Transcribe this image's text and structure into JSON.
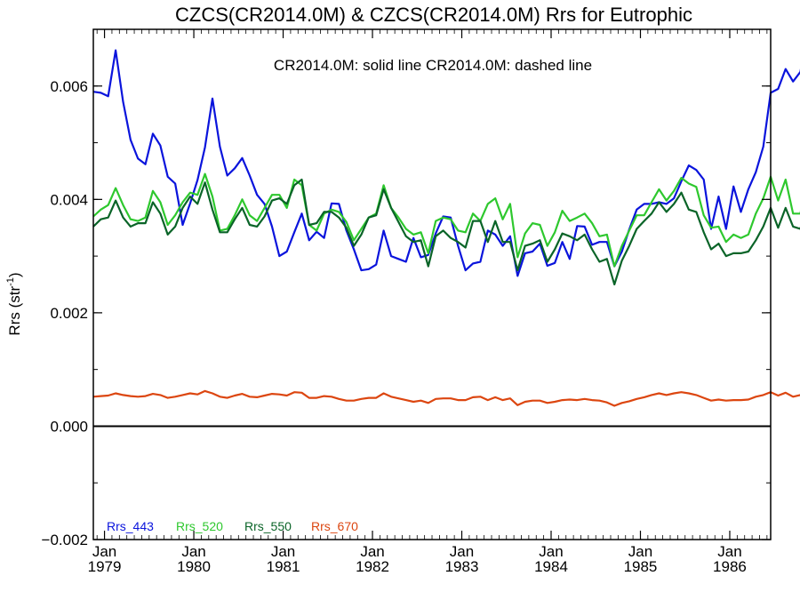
{
  "chart_data": {
    "type": "line",
    "title": "CZCS(CR2014.0M) & CZCS(CR2014.0M)  Rrs for Eutrophic",
    "subtitle": "CR2014.0M: solid line   CR2014.0M: dashed line",
    "ylabel_main": "Rrs (str",
    "ylabel_sup": "-1",
    "ylabel_tail": ")",
    "ylim": [
      -0.002,
      0.007
    ],
    "xlim": [
      1978.875,
      1986.458
    ],
    "yticks": [
      {
        "value": -0.002,
        "label": "−0.002"
      },
      {
        "value": 0.0,
        "label": "0.000"
      },
      {
        "value": 0.002,
        "label": "0.002"
      },
      {
        "value": 0.004,
        "label": "0.004"
      },
      {
        "value": 0.006,
        "label": "0.006"
      }
    ],
    "xticks": [
      {
        "value": 1979.0,
        "month": "Jan",
        "year": "1979"
      },
      {
        "value": 1980.0,
        "month": "Jan",
        "year": "1980"
      },
      {
        "value": 1981.0,
        "month": "Jan",
        "year": "1981"
      },
      {
        "value": 1982.0,
        "month": "Jan",
        "year": "1982"
      },
      {
        "value": 1983.0,
        "month": "Jan",
        "year": "1983"
      },
      {
        "value": 1984.0,
        "month": "Jan",
        "year": "1984"
      },
      {
        "value": 1985.0,
        "month": "Jan",
        "year": "1985"
      },
      {
        "value": 1986.0,
        "month": "Jan",
        "year": "1986"
      }
    ],
    "zero_line": 0.0,
    "x_start": 1978.875,
    "x_step_months": 1,
    "series": [
      {
        "name": "Rrs_443",
        "color": "#0a14dc",
        "values": [
          0.0059,
          0.00588,
          0.00582,
          0.00663,
          0.00572,
          0.00505,
          0.00472,
          0.00462,
          0.00516,
          0.00495,
          0.0044,
          0.00428,
          0.00355,
          0.00393,
          0.00434,
          0.00492,
          0.00578,
          0.00493,
          0.00442,
          0.00455,
          0.00473,
          0.00442,
          0.00408,
          0.00392,
          0.00352,
          0.003,
          0.00308,
          0.00342,
          0.00375,
          0.00328,
          0.00343,
          0.00332,
          0.00393,
          0.00392,
          0.00345,
          0.00312,
          0.00275,
          0.00277,
          0.00285,
          0.00345,
          0.003,
          0.00295,
          0.0029,
          0.00332,
          0.00298,
          0.00302,
          0.0034,
          0.0037,
          0.00368,
          0.00318,
          0.00275,
          0.00287,
          0.0029,
          0.00345,
          0.00338,
          0.00318,
          0.00335,
          0.00265,
          0.00305,
          0.00308,
          0.00322,
          0.00283,
          0.00288,
          0.00325,
          0.00295,
          0.00353,
          0.00352,
          0.0032,
          0.00325,
          0.00325,
          0.00282,
          0.00308,
          0.00347,
          0.00382,
          0.00392,
          0.00392,
          0.00395,
          0.00392,
          0.00402,
          0.00432,
          0.0046,
          0.00452,
          0.00435,
          0.00348,
          0.00405,
          0.00348,
          0.00423,
          0.00378,
          0.00418,
          0.00448,
          0.00493,
          0.00588,
          0.00595,
          0.0063,
          0.00608,
          0.00625,
          0.00705
        ]
      },
      {
        "name": "Rrs_520",
        "color": "#2ec82e",
        "values": [
          0.0037,
          0.00382,
          0.0039,
          0.0042,
          0.0039,
          0.00365,
          0.00362,
          0.00368,
          0.00415,
          0.00395,
          0.00355,
          0.00372,
          0.00395,
          0.00412,
          0.00408,
          0.00445,
          0.00405,
          0.00345,
          0.00348,
          0.00372,
          0.004,
          0.00372,
          0.00362,
          0.00385,
          0.00408,
          0.00408,
          0.00385,
          0.00435,
          0.00425,
          0.00355,
          0.00345,
          0.00375,
          0.00382,
          0.00378,
          0.0036,
          0.00328,
          0.00348,
          0.00368,
          0.00375,
          0.00425,
          0.00385,
          0.00368,
          0.00348,
          0.00338,
          0.00342,
          0.00305,
          0.00362,
          0.00368,
          0.00365,
          0.00345,
          0.00342,
          0.00375,
          0.00362,
          0.00392,
          0.00402,
          0.00365,
          0.00392,
          0.00298,
          0.0034,
          0.00358,
          0.00355,
          0.00318,
          0.00342,
          0.0038,
          0.00362,
          0.00368,
          0.00375,
          0.00358,
          0.00335,
          0.00338,
          0.00282,
          0.00318,
          0.00345,
          0.00372,
          0.00372,
          0.00395,
          0.00418,
          0.00398,
          0.00415,
          0.00438,
          0.00428,
          0.00422,
          0.00372,
          0.0035,
          0.00352,
          0.00325,
          0.00338,
          0.00332,
          0.00338,
          0.00375,
          0.00402,
          0.0044,
          0.00398,
          0.00435,
          0.00375,
          0.00375,
          0.00452
        ]
      },
      {
        "name": "Rrs_550",
        "color": "#0a6428",
        "values": [
          0.00352,
          0.00365,
          0.00368,
          0.00398,
          0.00368,
          0.00352,
          0.00358,
          0.00358,
          0.00395,
          0.00375,
          0.00338,
          0.00352,
          0.00385,
          0.00405,
          0.00392,
          0.0043,
          0.00382,
          0.00342,
          0.00342,
          0.00365,
          0.00385,
          0.00355,
          0.00352,
          0.0037,
          0.00398,
          0.00402,
          0.00392,
          0.00425,
          0.00435,
          0.00355,
          0.00358,
          0.00378,
          0.00378,
          0.00368,
          0.0035,
          0.00318,
          0.00338,
          0.00368,
          0.00372,
          0.00418,
          0.00385,
          0.0036,
          0.00335,
          0.00325,
          0.00328,
          0.00282,
          0.00335,
          0.00345,
          0.00332,
          0.00325,
          0.00315,
          0.00362,
          0.00362,
          0.00325,
          0.00362,
          0.00325,
          0.00325,
          0.00275,
          0.00318,
          0.00322,
          0.00328,
          0.0029,
          0.00312,
          0.0034,
          0.00335,
          0.00328,
          0.00338,
          0.00312,
          0.0029,
          0.00295,
          0.0025,
          0.00292,
          0.00318,
          0.00348,
          0.00362,
          0.00375,
          0.00395,
          0.00378,
          0.00392,
          0.00412,
          0.00382,
          0.00378,
          0.00342,
          0.00312,
          0.00322,
          0.003,
          0.00305,
          0.00305,
          0.00308,
          0.00328,
          0.00352,
          0.00385,
          0.0035,
          0.00385,
          0.00352,
          0.00348,
          0.00418
        ]
      },
      {
        "name": "Rrs_670",
        "color": "#dc4610",
        "values": [
          0.00052,
          0.00053,
          0.00054,
          0.00058,
          0.00055,
          0.00053,
          0.00052,
          0.00053,
          0.00057,
          0.00055,
          0.0005,
          0.00052,
          0.00055,
          0.00058,
          0.00056,
          0.00062,
          0.00058,
          0.00052,
          0.0005,
          0.00054,
          0.00057,
          0.00052,
          0.00051,
          0.00054,
          0.00057,
          0.00056,
          0.00054,
          0.0006,
          0.00059,
          0.0005,
          0.0005,
          0.00053,
          0.00052,
          0.00048,
          0.00045,
          0.00045,
          0.00048,
          0.0005,
          0.0005,
          0.00058,
          0.00052,
          0.00049,
          0.00046,
          0.00043,
          0.00045,
          0.00041,
          0.00048,
          0.00049,
          0.00049,
          0.00046,
          0.00046,
          0.00051,
          0.00052,
          0.00046,
          0.00051,
          0.00046,
          0.00049,
          0.00037,
          0.00043,
          0.00045,
          0.00045,
          0.00041,
          0.00043,
          0.00046,
          0.00047,
          0.00046,
          0.00048,
          0.00046,
          0.00045,
          0.00042,
          0.00036,
          0.00041,
          0.00044,
          0.00048,
          0.00051,
          0.00055,
          0.00058,
          0.00055,
          0.00058,
          0.0006,
          0.00058,
          0.00055,
          0.0005,
          0.00045,
          0.00047,
          0.00045,
          0.00046,
          0.00046,
          0.00047,
          0.00052,
          0.00055,
          0.0006,
          0.00054,
          0.00059,
          0.00052,
          0.00055,
          0.00066
        ]
      }
    ]
  }
}
